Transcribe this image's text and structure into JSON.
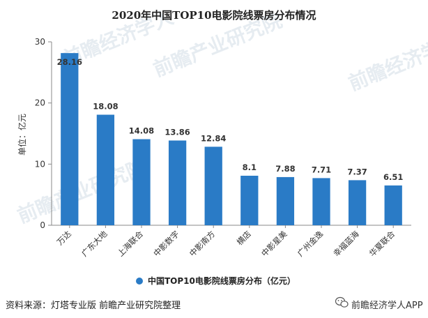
{
  "chart_data": {
    "type": "bar",
    "title": "2020年中国TOP10电影院线票房分布情况",
    "ylabel": "单位：亿元",
    "ylim": [
      0,
      30
    ],
    "yticks": [
      0,
      10,
      20,
      30
    ],
    "grid": false,
    "legend_position": "bottom-center",
    "categories": [
      "万达",
      "广东大地",
      "上海联合",
      "中影数字",
      "中影南方",
      "横店",
      "中影星美",
      "广州金逸",
      "幸福蓝海",
      "华夏联合"
    ],
    "series": [
      {
        "name": "中国TOP10电影院线票房分布（亿元）",
        "values": [
          28.16,
          18.08,
          14.08,
          13.86,
          12.84,
          8.1,
          7.88,
          7.71,
          7.37,
          6.51
        ],
        "color": "#2a7bc6"
      }
    ]
  },
  "footer": {
    "source": "资料来源：灯塔专业版 前瞻产业研究院整理",
    "brand": "前瞻经济学人APP"
  },
  "watermarks": [
    "前瞻产业研究院",
    "前瞻经济学人"
  ],
  "colors": {
    "bar": "#2a7bc6",
    "axis": "#888888",
    "text": "#333333"
  },
  "icons": {
    "brand_logo": "wechat-logo-icon"
  }
}
